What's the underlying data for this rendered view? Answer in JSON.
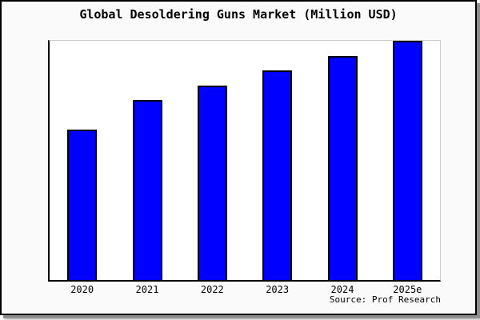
{
  "title": "Global Desoldering Guns Market (Million USD)",
  "source": "Source: Prof Research",
  "colors": {
    "bar_fill": "#0000ff",
    "bar_edge": "#000000",
    "card_background": "#fafafa",
    "plot_background": "#ffffff",
    "frame": "#000000",
    "text": "#000000"
  },
  "chart_data": {
    "type": "bar",
    "title": "Global Desoldering Guns Market (Million USD)",
    "categories": [
      "2020",
      "2021",
      "2022",
      "2023",
      "2024",
      "2025e"
    ],
    "values": [
      62.8,
      75.1,
      81.4,
      87.7,
      93.7,
      100.0
    ],
    "values_note": "No y-axis ticks or data labels are shown; values are relative bar heights normalized to 2025e = 100, estimated from pixel heights.",
    "xlabel": "",
    "ylabel": "",
    "ylim": [
      0,
      100
    ],
    "grid": false,
    "legend": false,
    "y_axis_ticks": "none",
    "annotations": [
      "Source: Prof Research"
    ]
  }
}
